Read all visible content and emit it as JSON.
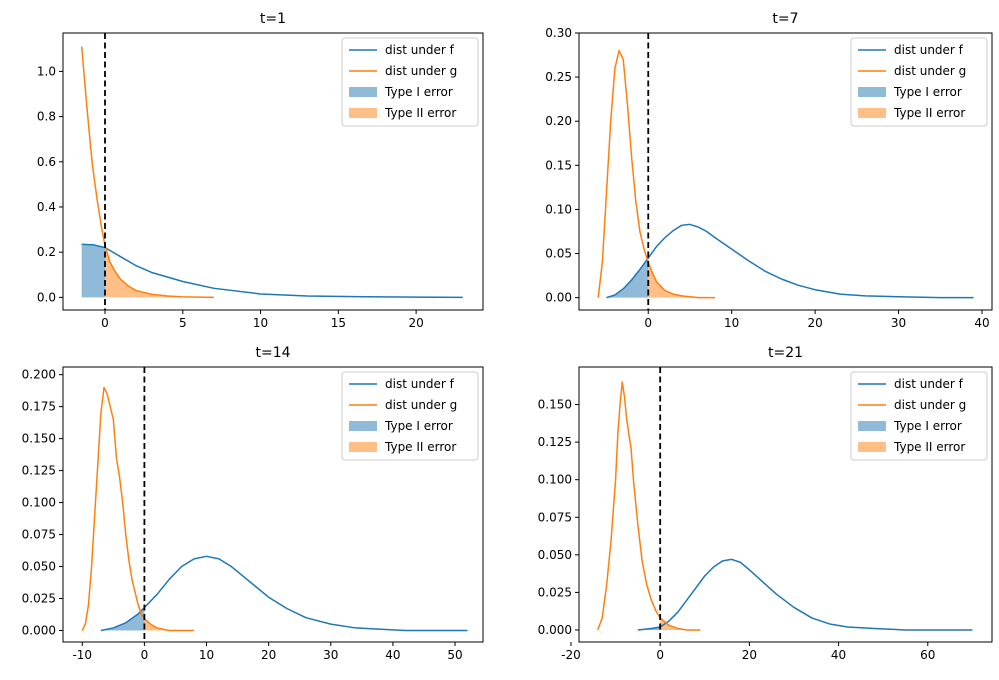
{
  "figure": {
    "background": "#ffffff"
  },
  "colors": {
    "f": "#1f77b4",
    "g": "#ff7f0e",
    "threshold": "#000000"
  },
  "chart_data": [
    {
      "type": "line",
      "title": "t=1",
      "xlim": [
        -2.7,
        24.3
      ],
      "ylim": [
        -0.056,
        1.17
      ],
      "xticks": [
        0,
        5,
        10,
        15,
        20
      ],
      "yticks": [
        0.0,
        0.2,
        0.4,
        0.6,
        0.8,
        1.0
      ],
      "ytick_labels": [
        "0.0",
        "0.2",
        "0.4",
        "0.6",
        "0.8",
        "1.0"
      ],
      "threshold": 0,
      "legend": {
        "position": "top-right",
        "entries": [
          "dist under f",
          "dist under g",
          "Type I error",
          "Type II error"
        ]
      },
      "series": [
        {
          "name": "dist under f",
          "color": "#1f77b4",
          "x": [
            -1.5,
            -0.7,
            0,
            1,
            2,
            3,
            5,
            7,
            10,
            13,
            16,
            20,
            23
          ],
          "y": [
            0.235,
            0.232,
            0.22,
            0.18,
            0.14,
            0.11,
            0.07,
            0.04,
            0.015,
            0.006,
            0.003,
            0.001,
            0.0
          ]
        },
        {
          "name": "dist under g",
          "color": "#ff7f0e",
          "x": [
            -1.5,
            -1.2,
            -1.0,
            -0.8,
            -0.5,
            -0.2,
            0,
            0.3,
            0.6,
            1,
            1.5,
            2,
            3,
            4,
            5,
            7
          ],
          "y": [
            1.11,
            0.87,
            0.72,
            0.58,
            0.43,
            0.3,
            0.23,
            0.16,
            0.12,
            0.08,
            0.05,
            0.03,
            0.014,
            0.006,
            0.002,
            0.0
          ]
        }
      ],
      "fills": [
        {
          "name": "Type I error",
          "color": "#1f77b4",
          "x_from": -1.5,
          "x_to": 0
        },
        {
          "name": "Type II error",
          "color": "#ff7f0e",
          "x_from": 0,
          "x_to": 7
        }
      ]
    },
    {
      "type": "line",
      "title": "t=7",
      "xlim": [
        -8.3,
        41.2
      ],
      "ylim": [
        -0.014,
        0.3
      ],
      "xticks": [
        0,
        10,
        20,
        30,
        40
      ],
      "yticks": [
        0.0,
        0.05,
        0.1,
        0.15,
        0.2,
        0.25,
        0.3
      ],
      "ytick_labels": [
        "0.00",
        "0.05",
        "0.10",
        "0.15",
        "0.20",
        "0.25",
        "0.30"
      ],
      "threshold": 0,
      "legend": {
        "position": "top-right",
        "entries": [
          "dist under f",
          "dist under g",
          "Type I error",
          "Type II error"
        ]
      },
      "series": [
        {
          "name": "dist under f",
          "color": "#1f77b4",
          "x": [
            -5,
            -4,
            -3,
            -2,
            -1,
            0,
            1,
            2,
            3,
            4,
            5,
            6,
            7,
            8,
            10,
            12,
            14,
            16,
            18,
            20,
            23,
            26,
            30,
            35,
            39
          ],
          "y": [
            0.0,
            0.003,
            0.01,
            0.02,
            0.032,
            0.045,
            0.058,
            0.068,
            0.076,
            0.082,
            0.083,
            0.08,
            0.075,
            0.068,
            0.055,
            0.042,
            0.03,
            0.021,
            0.014,
            0.009,
            0.004,
            0.002,
            0.001,
            0.0,
            0.0
          ]
        },
        {
          "name": "dist under g",
          "color": "#ff7f0e",
          "x": [
            -6,
            -5.5,
            -5,
            -4.5,
            -4,
            -3.5,
            -3,
            -2.5,
            -2,
            -1.5,
            -1,
            -0.5,
            0,
            0.5,
            1,
            2,
            3,
            4,
            6,
            8
          ],
          "y": [
            0.0,
            0.04,
            0.12,
            0.2,
            0.26,
            0.28,
            0.27,
            0.22,
            0.16,
            0.11,
            0.075,
            0.055,
            0.04,
            0.028,
            0.018,
            0.008,
            0.004,
            0.002,
            0.0,
            0.0
          ]
        }
      ],
      "fills": [
        {
          "name": "Type I error",
          "color": "#1f77b4",
          "x_from": -5,
          "x_to": 0
        },
        {
          "name": "Type II error",
          "color": "#ff7f0e",
          "x_from": 0,
          "x_to": 8
        }
      ]
    },
    {
      "type": "line",
      "title": "t=14",
      "xlim": [
        -13.1,
        54.5
      ],
      "ylim": [
        -0.009,
        0.206
      ],
      "xticks": [
        -10,
        0,
        10,
        20,
        30,
        40,
        50
      ],
      "yticks": [
        0.0,
        0.025,
        0.05,
        0.075,
        0.1,
        0.125,
        0.15,
        0.175,
        0.2
      ],
      "ytick_labels": [
        "0.000",
        "0.025",
        "0.050",
        "0.075",
        "0.100",
        "0.125",
        "0.150",
        "0.175",
        "0.200"
      ],
      "threshold": 0,
      "legend": {
        "position": "top-right",
        "entries": [
          "dist under f",
          "dist under g",
          "Type I error",
          "Type II error"
        ]
      },
      "series": [
        {
          "name": "dist under f",
          "color": "#1f77b4",
          "x": [
            -7,
            -5,
            -3,
            -1,
            0,
            2,
            4,
            6,
            8,
            10,
            12,
            14,
            16,
            18,
            20,
            23,
            26,
            30,
            34,
            38,
            42,
            46,
            52
          ],
          "y": [
            0.0,
            0.002,
            0.006,
            0.013,
            0.018,
            0.028,
            0.04,
            0.05,
            0.056,
            0.058,
            0.056,
            0.05,
            0.042,
            0.034,
            0.026,
            0.017,
            0.01,
            0.005,
            0.002,
            0.001,
            0.0,
            0.0,
            0.0
          ]
        },
        {
          "name": "dist under g",
          "color": "#ff7f0e",
          "x": [
            -10,
            -9.5,
            -9,
            -8.5,
            -8,
            -7.5,
            -7,
            -6.5,
            -6,
            -5.5,
            -5,
            -4.5,
            -4,
            -3.5,
            -3,
            -2.5,
            -2,
            -1.5,
            -1,
            -0.5,
            0,
            1,
            2,
            3,
            4,
            6,
            8
          ],
          "y": [
            0.0,
            0.005,
            0.02,
            0.05,
            0.09,
            0.13,
            0.17,
            0.19,
            0.185,
            0.175,
            0.165,
            0.135,
            0.12,
            0.1,
            0.075,
            0.055,
            0.04,
            0.03,
            0.02,
            0.013,
            0.009,
            0.005,
            0.002,
            0.001,
            0.0,
            0.0,
            0.0
          ]
        }
      ],
      "fills": [
        {
          "name": "Type I error",
          "color": "#1f77b4",
          "x_from": -7,
          "x_to": 0
        },
        {
          "name": "Type II error",
          "color": "#ff7f0e",
          "x_from": 0,
          "x_to": 8
        }
      ]
    },
    {
      "type": "line",
      "title": "t=21",
      "xlim": [
        -18.2,
        74.4
      ],
      "ylim": [
        -0.008,
        0.175
      ],
      "xticks": [
        -20,
        0,
        20,
        40,
        60
      ],
      "yticks": [
        0.0,
        0.025,
        0.05,
        0.075,
        0.1,
        0.125,
        0.15
      ],
      "ytick_labels": [
        "0.000",
        "0.025",
        "0.050",
        "0.075",
        "0.100",
        "0.125",
        "0.150"
      ],
      "threshold": 0,
      "legend": {
        "position": "top-right",
        "entries": [
          "dist under f",
          "dist under g",
          "Type I error",
          "Type II error"
        ]
      },
      "series": [
        {
          "name": "dist under f",
          "color": "#1f77b4",
          "x": [
            -5,
            -2,
            0,
            2,
            4,
            6,
            8,
            10,
            12,
            14,
            16,
            18,
            20,
            23,
            26,
            30,
            34,
            38,
            42,
            48,
            55,
            62,
            70
          ],
          "y": [
            0.0,
            0.001,
            0.002,
            0.006,
            0.012,
            0.02,
            0.028,
            0.036,
            0.042,
            0.046,
            0.047,
            0.045,
            0.04,
            0.032,
            0.024,
            0.015,
            0.008,
            0.004,
            0.002,
            0.001,
            0.0,
            0.0,
            0.0
          ]
        },
        {
          "name": "dist under g",
          "color": "#ff7f0e",
          "x": [
            -14,
            -13,
            -12,
            -11,
            -10,
            -9.5,
            -9,
            -8.5,
            -8,
            -7.5,
            -7,
            -6.5,
            -6,
            -5,
            -4,
            -3,
            -2,
            -1,
            0,
            2,
            4,
            6,
            9
          ],
          "y": [
            0.0,
            0.008,
            0.03,
            0.06,
            0.1,
            0.13,
            0.15,
            0.165,
            0.155,
            0.14,
            0.13,
            0.12,
            0.1,
            0.07,
            0.045,
            0.03,
            0.02,
            0.013,
            0.008,
            0.003,
            0.001,
            0.0,
            0.0
          ]
        }
      ],
      "fills": [
        {
          "name": "Type I error",
          "color": "#1f77b4",
          "x_from": -5,
          "x_to": 0
        },
        {
          "name": "Type II error",
          "color": "#ff7f0e",
          "x_from": 0,
          "x_to": 9
        }
      ]
    }
  ]
}
